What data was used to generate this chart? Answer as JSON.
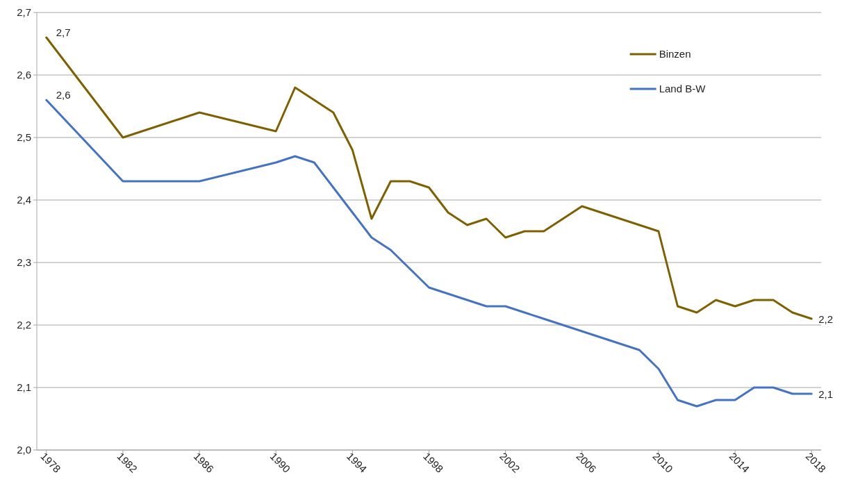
{
  "chart_data": {
    "type": "line",
    "x": [
      1978,
      1982,
      1986,
      1990,
      1991,
      1992,
      1993,
      1994,
      1995,
      1996,
      1997,
      1998,
      1999,
      2000,
      2001,
      2002,
      2003,
      2004,
      2005,
      2006,
      2007,
      2008,
      2009,
      2010,
      2011,
      2012,
      2013,
      2014,
      2015,
      2016,
      2017,
      2018
    ],
    "series": [
      {
        "name": "Binzen",
        "color": "#7f6000",
        "values": [
          2.66,
          2.5,
          2.54,
          2.51,
          2.58,
          2.56,
          2.54,
          2.48,
          2.37,
          2.43,
          2.43,
          2.42,
          2.38,
          2.36,
          2.37,
          2.34,
          2.35,
          2.35,
          2.37,
          2.39,
          2.38,
          2.37,
          2.36,
          2.35,
          2.23,
          2.22,
          2.24,
          2.23,
          2.24,
          2.24,
          2.22,
          2.21
        ],
        "value_labels": [
          "2,7",
          null,
          null,
          null,
          null,
          null,
          null,
          null,
          null,
          null,
          null,
          null,
          null,
          null,
          null,
          null,
          null,
          null,
          null,
          null,
          null,
          null,
          null,
          null,
          null,
          null,
          null,
          null,
          null,
          null,
          null,
          "2,2"
        ]
      },
      {
        "name": "Land B-W",
        "color": "#4472c4",
        "values": [
          2.56,
          2.43,
          2.43,
          2.46,
          2.47,
          2.46,
          2.42,
          2.38,
          2.34,
          2.32,
          2.29,
          2.26,
          2.25,
          2.24,
          2.23,
          2.23,
          2.22,
          2.21,
          2.2,
          2.19,
          2.18,
          2.17,
          2.16,
          2.13,
          2.08,
          2.07,
          2.08,
          2.08,
          2.1,
          2.1,
          2.09,
          2.09
        ],
        "value_labels": [
          "2,6",
          null,
          null,
          null,
          null,
          null,
          null,
          null,
          null,
          null,
          null,
          null,
          null,
          null,
          null,
          null,
          null,
          null,
          null,
          null,
          null,
          null,
          null,
          null,
          null,
          null,
          null,
          null,
          null,
          null,
          null,
          "2,1"
        ]
      }
    ],
    "xlim": [
      1977.5,
      2018.5
    ],
    "xticks": [
      1978,
      1982,
      1986,
      1990,
      1994,
      1998,
      2002,
      2006,
      2010,
      2014,
      2018
    ],
    "ylim": [
      2.0,
      2.7
    ],
    "yticks": [
      {
        "value": 2.0,
        "label": "2,0"
      },
      {
        "value": 2.1,
        "label": "2,1"
      },
      {
        "value": 2.2,
        "label": "2,2"
      },
      {
        "value": 2.3,
        "label": "2,3"
      },
      {
        "value": 2.4,
        "label": "2,4"
      },
      {
        "value": 2.5,
        "label": "2,5"
      },
      {
        "value": 2.6,
        "label": "2,6"
      },
      {
        "value": 2.7,
        "label": "2,7"
      }
    ],
    "grid": "y",
    "legend": "top right",
    "marker": "none",
    "line_style": "solid"
  }
}
